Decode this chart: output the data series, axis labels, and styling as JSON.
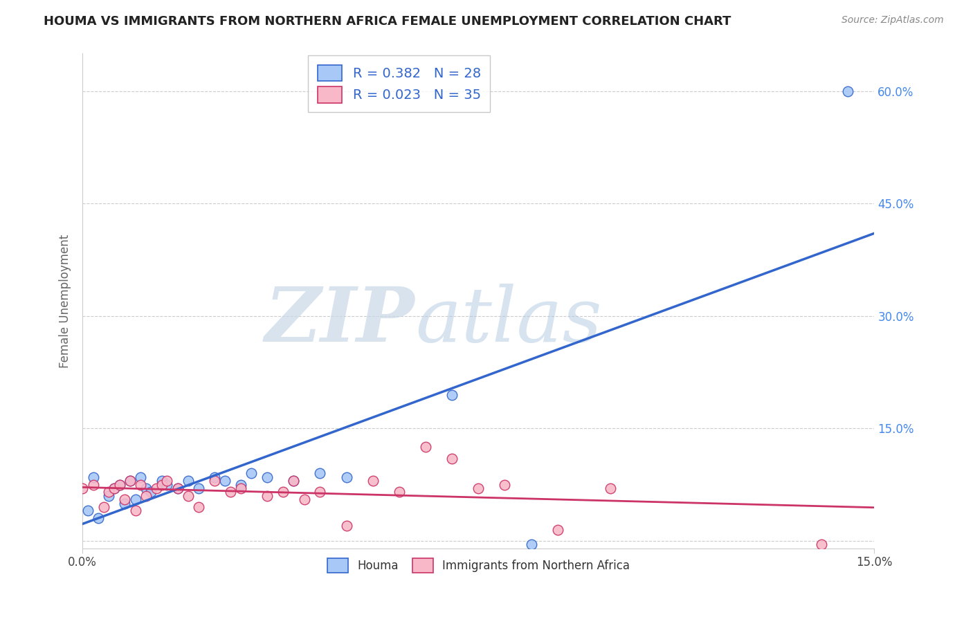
{
  "title": "HOUMA VS IMMIGRANTS FROM NORTHERN AFRICA FEMALE UNEMPLOYMENT CORRELATION CHART",
  "source": "Source: ZipAtlas.com",
  "ylabel": "Female Unemployment",
  "xlim": [
    0.0,
    0.15
  ],
  "ylim": [
    -0.01,
    0.65
  ],
  "houma_R": 0.382,
  "houma_N": 28,
  "immigrants_R": 0.023,
  "immigrants_N": 35,
  "houma_color": "#a8c8f8",
  "immigrants_color": "#f8b8c8",
  "houma_line_color": "#3366cc",
  "immigrants_line_color": "#cc3366",
  "houma_x": [
    0.001,
    0.002,
    0.003,
    0.005,
    0.006,
    0.007,
    0.008,
    0.009,
    0.01,
    0.011,
    0.012,
    0.013,
    0.015,
    0.016,
    0.018,
    0.02,
    0.022,
    0.025,
    0.027,
    0.03,
    0.032,
    0.035,
    0.04,
    0.045,
    0.05,
    0.07,
    0.085,
    0.145
  ],
  "houma_y": [
    0.04,
    0.085,
    0.03,
    0.06,
    0.07,
    0.075,
    0.05,
    0.08,
    0.055,
    0.085,
    0.07,
    0.065,
    0.08,
    0.075,
    0.07,
    0.08,
    0.07,
    0.085,
    0.08,
    0.075,
    0.09,
    0.085,
    0.08,
    0.09,
    0.085,
    0.195,
    -0.005,
    0.6
  ],
  "immigrants_x": [
    0.0,
    0.002,
    0.004,
    0.005,
    0.006,
    0.007,
    0.008,
    0.009,
    0.01,
    0.011,
    0.012,
    0.014,
    0.015,
    0.016,
    0.018,
    0.02,
    0.022,
    0.025,
    0.028,
    0.03,
    0.035,
    0.038,
    0.04,
    0.042,
    0.045,
    0.05,
    0.055,
    0.06,
    0.065,
    0.07,
    0.075,
    0.08,
    0.09,
    0.1,
    0.14
  ],
  "immigrants_y": [
    0.07,
    0.075,
    0.045,
    0.065,
    0.07,
    0.075,
    0.055,
    0.08,
    0.04,
    0.075,
    0.06,
    0.07,
    0.075,
    0.08,
    0.07,
    0.06,
    0.045,
    0.08,
    0.065,
    0.07,
    0.06,
    0.065,
    0.08,
    0.055,
    0.065,
    0.02,
    0.08,
    0.065,
    0.125,
    0.11,
    0.07,
    0.075,
    0.015,
    0.07,
    -0.005
  ],
  "background_color": "#ffffff",
  "grid_color": "#cccccc",
  "ytick_positions": [
    0.0,
    0.15,
    0.3,
    0.45,
    0.6
  ],
  "ytick_labels": [
    "",
    "15.0%",
    "30.0%",
    "45.0%",
    "60.0%"
  ],
  "xtick_positions": [
    0.0,
    0.15
  ],
  "xtick_labels": [
    "0.0%",
    "15.0%"
  ]
}
